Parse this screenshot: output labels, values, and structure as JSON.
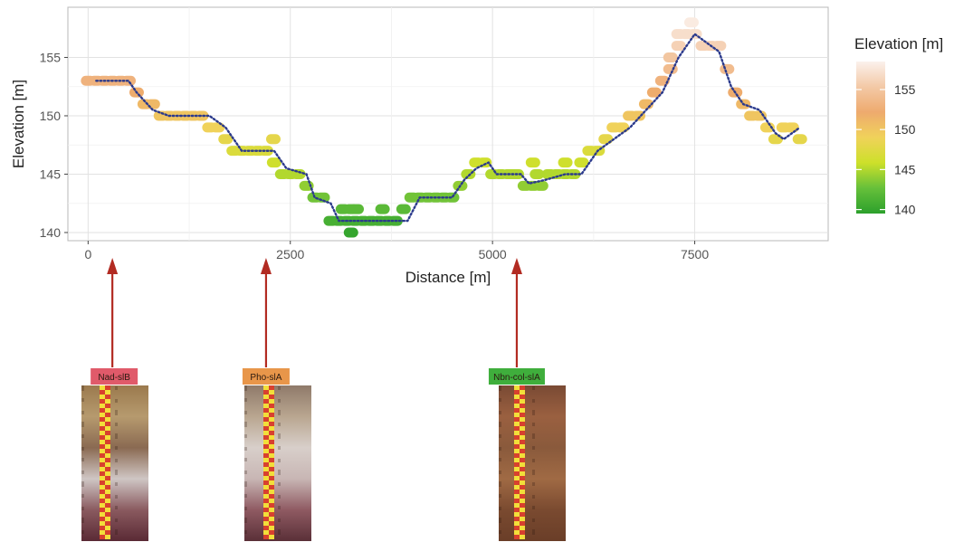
{
  "chart_data": {
    "type": "scatter",
    "xlabel": "Distance [m]",
    "ylabel": "Elevation [m]",
    "xlim": [
      -250,
      9150
    ],
    "ylim": [
      139.3,
      159.3
    ],
    "x_ticks": [
      0,
      2500,
      5000,
      7500
    ],
    "x_tick_labels": [
      "0",
      "2500",
      "5000",
      "7500"
    ],
    "y_ticks": [
      140,
      145,
      150,
      155
    ],
    "y_tick_labels": [
      "140",
      "145",
      "150",
      "155"
    ],
    "grid": true,
    "legend": {
      "title": "Elevation [m]",
      "position": "right",
      "ticks": [
        155,
        150,
        145,
        140
      ],
      "tick_labels": [
        "155",
        "150",
        "145",
        "140"
      ],
      "range": [
        139.5,
        158.5
      ],
      "colors": [
        "#2ca02c",
        "#66c03a",
        "#cde02a",
        "#f0d25a",
        "#eeaa6e",
        "#f3c9a6",
        "#fbf1ec"
      ]
    },
    "series": [
      {
        "style": "points colored by elevation",
        "x": [
          0,
          100,
          200,
          300,
          400,
          500,
          600,
          700,
          800,
          900,
          1000,
          1100,
          1200,
          1300,
          1400,
          1500,
          1600,
          1700,
          1800,
          1900,
          2000,
          2100,
          2200,
          2300,
          2400,
          2500,
          2600,
          2700,
          2800,
          2900,
          3000,
          3100,
          3200,
          3300,
          3400,
          3500,
          3600,
          3700,
          3800,
          3900,
          4000,
          4100,
          4200,
          4300,
          4400,
          4500,
          4600,
          4700,
          4800,
          4900,
          5000,
          5100,
          5200,
          5300,
          5400,
          5500,
          5600,
          5700,
          5800,
          5900,
          6000,
          6100,
          6200,
          6300,
          6400,
          6500,
          6600,
          6700,
          6800,
          6900,
          7000,
          7100,
          7200,
          7300,
          7400,
          7500,
          7600,
          7700,
          7800,
          7900,
          8000,
          8100,
          8200,
          8300,
          8400,
          8500,
          8600,
          8700,
          8800
        ],
        "y": [
          153,
          153,
          153,
          153,
          153,
          153,
          152,
          151,
          151,
          150,
          150,
          150,
          150,
          150,
          150,
          149,
          149,
          148,
          147,
          147,
          147,
          147,
          147,
          146,
          145,
          145,
          145,
          144,
          143,
          143,
          141,
          141,
          141,
          141,
          141,
          141,
          141,
          141,
          141,
          142,
          143,
          143,
          143,
          143,
          143,
          143,
          144,
          145,
          146,
          146,
          145,
          145,
          145,
          145,
          144,
          144,
          144,
          145,
          145,
          145,
          145,
          146,
          147,
          147,
          148,
          149,
          149,
          150,
          150,
          151,
          152,
          153,
          154,
          156,
          157,
          157,
          156,
          156,
          156,
          154,
          152,
          151,
          150,
          150,
          149,
          148,
          149,
          149,
          148
        ]
      },
      {
        "style": "extra scattered points",
        "x": [
          2290,
          3250,
          3150,
          3250,
          3320,
          3640,
          5500,
          5250,
          5550,
          5900,
          7460,
          7300,
          7200
        ],
        "y": [
          148,
          140,
          142,
          142,
          142,
          142,
          146,
          145,
          145,
          146,
          158,
          157,
          155
        ]
      },
      {
        "style": "dotted navy line",
        "x": [
          100,
          500,
          600,
          800,
          1000,
          1500,
          1700,
          1900,
          2300,
          2450,
          2700,
          2800,
          3000,
          3100,
          3950,
          4100,
          4500,
          4650,
          4800,
          4950,
          5050,
          5350,
          5450,
          5650,
          5900,
          6100,
          6300,
          6500,
          6700,
          6900,
          7100,
          7300,
          7500,
          7600,
          7700,
          7800,
          7950,
          8100,
          8300,
          8500,
          8600,
          8800
        ],
        "y": [
          153,
          153,
          152,
          150.5,
          150,
          150,
          149,
          147,
          147,
          145.5,
          145,
          143,
          142.5,
          141,
          141,
          143,
          143,
          144.5,
          145.5,
          146,
          145,
          145,
          144.2,
          144.5,
          145,
          145,
          147,
          148,
          149,
          150.5,
          152,
          155,
          157,
          156.5,
          156,
          155.5,
          152.5,
          151,
          150.5,
          148.5,
          148,
          149
        ]
      }
    ],
    "annotations": [
      {
        "label": "Nad-slB",
        "x": 300,
        "label_color": "#e05a6a"
      },
      {
        "label": "Pho-slA",
        "x": 2200,
        "label_color": "#e8964a"
      },
      {
        "label": "Nbn-col-slA",
        "x": 5300,
        "label_color": "#3fae3c"
      }
    ],
    "arrow_color": "#b22b22"
  }
}
